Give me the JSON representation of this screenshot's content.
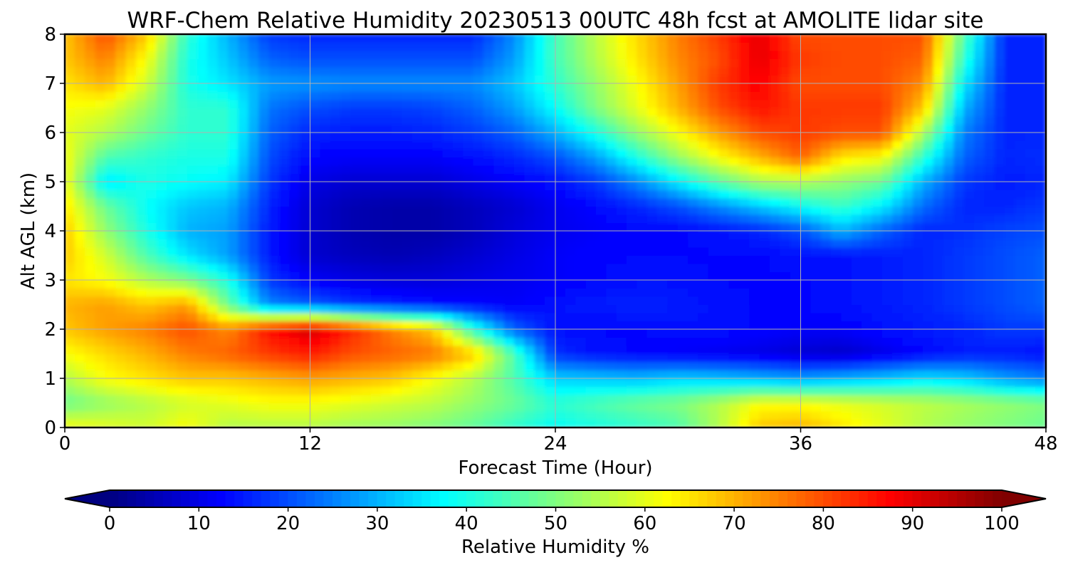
{
  "chart_data": {
    "type": "heatmap",
    "title": "WRF-Chem Relative Humidity 20230513 00UTC 48h fcst at AMOLITE lidar site",
    "xlabel": "Forecast Time (Hour)",
    "ylabel": "Alt AGL (km)",
    "xlim": [
      0,
      48
    ],
    "ylim": [
      0,
      8
    ],
    "x_ticks": [
      0,
      12,
      24,
      36,
      48
    ],
    "y_ticks": [
      0,
      1,
      2,
      3,
      4,
      5,
      6,
      7,
      8
    ],
    "grid": true,
    "colormap": "jet",
    "colorbar": {
      "label": "Relative Humidity %",
      "range": [
        0,
        100
      ],
      "ticks": [
        0,
        10,
        20,
        30,
        40,
        50,
        60,
        70,
        80,
        90,
        100
      ],
      "extend": "both",
      "orientation": "horizontal"
    },
    "x": [
      0,
      2,
      4,
      6,
      8,
      10,
      12,
      14,
      16,
      18,
      20,
      22,
      24,
      26,
      28,
      30,
      32,
      34,
      36,
      38,
      40,
      42,
      44,
      46,
      48
    ],
    "y": [
      0,
      0.5,
      1,
      1.5,
      2,
      2.5,
      3,
      3.5,
      4,
      4.5,
      5,
      5.5,
      6,
      6.5,
      7,
      7.5,
      8
    ],
    "z": [
      [
        62,
        60,
        58,
        62,
        55,
        55,
        55,
        53,
        52,
        50,
        47,
        42,
        38,
        40,
        42,
        45,
        55,
        68,
        70,
        65,
        60,
        55,
        52,
        50,
        48
      ],
      [
        48,
        52,
        55,
        58,
        60,
        62,
        62,
        60,
        58,
        56,
        52,
        48,
        42,
        45,
        48,
        50,
        55,
        62,
        62,
        60,
        58,
        56,
        54,
        52,
        50
      ],
      [
        55,
        62,
        65,
        68,
        68,
        70,
        72,
        70,
        68,
        62,
        55,
        45,
        33,
        32,
        31,
        33,
        32,
        30,
        28,
        30,
        32,
        35,
        33,
        28,
        25
      ],
      [
        62,
        66,
        70,
        75,
        78,
        82,
        85,
        80,
        78,
        76,
        68,
        45,
        17,
        14,
        13,
        12,
        11,
        10,
        8,
        7,
        10,
        13,
        15,
        15,
        14
      ],
      [
        68,
        72,
        75,
        80,
        74,
        86,
        92,
        84,
        75,
        68,
        42,
        22,
        14,
        13,
        13,
        14,
        14,
        13,
        12,
        12,
        14,
        15,
        16,
        18,
        18
      ],
      [
        70,
        72,
        68,
        72,
        48,
        26,
        22,
        18,
        16,
        14,
        13,
        12,
        14,
        15,
        16,
        15,
        14,
        13,
        13,
        14,
        15,
        16,
        18,
        20,
        22
      ],
      [
        65,
        62,
        55,
        50,
        40,
        18,
        12,
        10,
        9,
        9,
        10,
        11,
        12,
        13,
        14,
        14,
        13,
        13,
        13,
        14,
        15,
        16,
        18,
        20,
        22
      ],
      [
        68,
        58,
        45,
        35,
        28,
        15,
        8,
        6,
        5,
        6,
        8,
        10,
        12,
        13,
        13,
        13,
        13,
        13,
        14,
        14,
        15,
        16,
        18,
        20,
        22
      ],
      [
        68,
        52,
        40,
        30,
        28,
        15,
        8,
        5,
        4,
        4,
        6,
        9,
        11,
        12,
        13,
        13,
        14,
        16,
        20,
        30,
        22,
        16,
        17,
        19,
        20
      ],
      [
        65,
        48,
        38,
        32,
        30,
        16,
        8,
        5,
        4,
        4,
        6,
        8,
        11,
        13,
        16,
        20,
        26,
        32,
        38,
        43,
        36,
        23,
        16,
        16,
        18
      ],
      [
        62,
        35,
        40,
        38,
        36,
        18,
        10,
        8,
        8,
        8,
        10,
        12,
        14,
        18,
        26,
        36,
        46,
        54,
        55,
        52,
        48,
        30,
        18,
        15,
        16
      ],
      [
        62,
        45,
        42,
        40,
        40,
        20,
        13,
        12,
        12,
        12,
        14,
        16,
        20,
        28,
        40,
        52,
        62,
        70,
        78,
        65,
        62,
        42,
        22,
        16,
        17
      ],
      [
        60,
        55,
        48,
        42,
        42,
        22,
        16,
        15,
        15,
        16,
        18,
        22,
        30,
        40,
        52,
        62,
        72,
        80,
        82,
        80,
        80,
        55,
        25,
        16,
        16
      ],
      [
        62,
        60,
        52,
        42,
        42,
        24,
        20,
        18,
        18,
        19,
        22,
        28,
        38,
        50,
        60,
        70,
        80,
        86,
        82,
        82,
        82,
        68,
        30,
        16,
        16
      ],
      [
        65,
        70,
        58,
        40,
        35,
        28,
        27,
        26,
        26,
        26,
        26,
        32,
        42,
        52,
        62,
        72,
        82,
        88,
        80,
        80,
        80,
        74,
        36,
        16,
        16
      ],
      [
        68,
        75,
        62,
        40,
        32,
        22,
        20,
        20,
        20,
        20,
        20,
        28,
        44,
        55,
        65,
        74,
        80,
        90,
        82,
        80,
        80,
        78,
        42,
        16,
        16
      ],
      [
        68,
        80,
        68,
        42,
        30,
        18,
        16,
        16,
        16,
        16,
        16,
        26,
        44,
        56,
        66,
        75,
        82,
        90,
        80,
        80,
        80,
        80,
        46,
        16,
        16
      ]
    ]
  }
}
